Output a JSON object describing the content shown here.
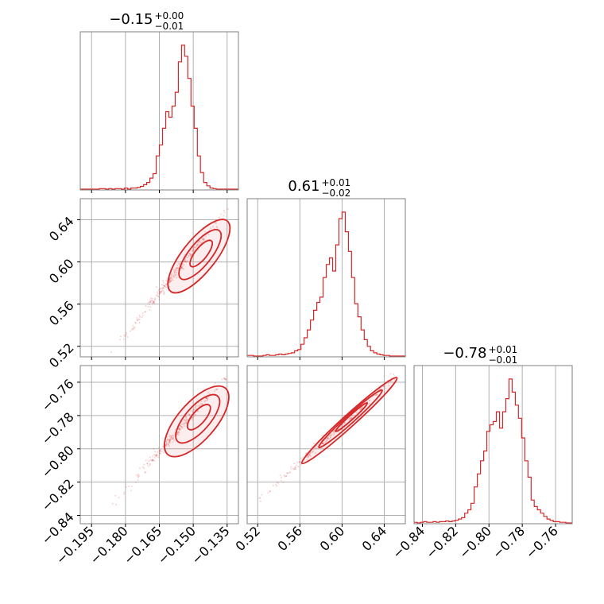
{
  "chart_data": {
    "type": "corner",
    "color": "#d62728",
    "parameters": [
      {
        "title": {
          "value": "−0.15",
          "plus": "+0.00",
          "minus": "−0.01"
        },
        "range": [
          -0.2,
          -0.13
        ],
        "ticks": [
          -0.195,
          -0.18,
          -0.165,
          -0.15,
          -0.135
        ],
        "tick_labels": [
          "−0.195",
          "−0.180",
          "−0.165",
          "−0.150",
          "−0.135"
        ]
      },
      {
        "title": {
          "value": "0.61",
          "plus": "+0.01",
          "minus": "−0.02"
        },
        "range": [
          0.51,
          0.66
        ],
        "ticks": [
          0.52,
          0.56,
          0.6,
          0.64
        ],
        "tick_labels": [
          "0.52",
          "0.56",
          "0.60",
          "0.64"
        ]
      },
      {
        "title": {
          "value": "−0.78",
          "plus": "+0.01",
          "minus": "−0.01"
        },
        "range": [
          -0.845,
          -0.75
        ],
        "ticks": [
          -0.84,
          -0.82,
          -0.8,
          -0.78,
          -0.76
        ],
        "tick_labels": [
          "−0.84",
          "−0.82",
          "−0.80",
          "−0.78",
          "−0.76"
        ]
      }
    ],
    "histograms": [
      {
        "parameter": 0,
        "bin_start": -0.2,
        "bin_width": 0.0014,
        "counts": [
          0,
          0,
          0,
          0,
          0,
          0,
          1,
          1,
          0,
          1,
          0,
          1,
          1,
          0,
          2,
          0,
          2,
          2,
          3,
          5,
          8,
          12,
          20,
          28,
          60,
          80,
          110,
          140,
          130,
          150,
          175,
          230,
          260,
          240,
          200,
          150,
          110,
          60,
          30,
          12,
          6,
          2,
          1,
          0,
          0,
          0,
          0,
          0,
          0,
          0
        ]
      },
      {
        "parameter": 1,
        "bin_start": 0.51,
        "bin_width": 0.003,
        "counts": [
          1,
          1,
          0,
          0,
          0,
          1,
          2,
          1,
          1,
          2,
          3,
          2,
          3,
          4,
          5,
          8,
          10,
          18,
          28,
          40,
          55,
          70,
          82,
          90,
          120,
          140,
          150,
          130,
          170,
          210,
          220,
          190,
          160,
          120,
          80,
          60,
          40,
          25,
          15,
          8,
          5,
          3,
          2,
          1,
          1,
          0,
          0,
          0,
          0,
          0
        ]
      },
      {
        "parameter": 2,
        "bin_start": -0.845,
        "bin_width": 0.0019,
        "counts": [
          1,
          0,
          1,
          2,
          1,
          1,
          2,
          1,
          2,
          2,
          3,
          2,
          3,
          4,
          6,
          8,
          15,
          20,
          30,
          55,
          75,
          95,
          110,
          140,
          150,
          155,
          170,
          145,
          170,
          190,
          220,
          200,
          180,
          160,
          130,
          95,
          70,
          35,
          25,
          20,
          15,
          10,
          6,
          4,
          2,
          2,
          1,
          1,
          0,
          0
        ]
      }
    ],
    "pairs": [
      {
        "x_param": 0,
        "y_param": 1,
        "levels": [
          {
            "center": [
              -0.1475,
              0.6055
            ],
            "a": 0.0125,
            "b": 0.0028
          },
          {
            "center": [
              -0.147,
              0.607
            ],
            "a": 0.0085,
            "b": 0.0019
          },
          {
            "center": [
              -0.1465,
              0.608
            ],
            "a": 0.0045,
            "b": 0.001
          }
        ],
        "scatter_from": [
          -0.185,
          0.517
        ],
        "scatter_to": [
          -0.136,
          0.648
        ]
      },
      {
        "x_param": 0,
        "y_param": 2,
        "levels": [
          {
            "center": [
              -0.1485,
              -0.7835
            ],
            "a": 0.0128,
            "b": 0.0032
          },
          {
            "center": [
              -0.148,
              -0.782
            ],
            "a": 0.0088,
            "b": 0.0021
          },
          {
            "center": [
              -0.1475,
              -0.781
            ],
            "a": 0.0046,
            "b": 0.0011
          }
        ],
        "scatter_from": [
          -0.185,
          -0.833
        ],
        "scatter_to": [
          -0.136,
          -0.757
        ]
      },
      {
        "x_param": 1,
        "y_param": 2,
        "levels": [
          {
            "center": [
              0.607,
              -0.783
            ],
            "a": 0.045,
            "b": 0.0022
          },
          {
            "center": [
              0.608,
              -0.782
            ],
            "a": 0.03,
            "b": 0.0015
          },
          {
            "center": [
              0.609,
              -0.781
            ],
            "a": 0.015,
            "b": 0.0008
          }
        ],
        "scatter_from": [
          0.522,
          -0.83
        ],
        "scatter_to": [
          0.648,
          -0.758
        ]
      }
    ],
    "grid": true
  }
}
